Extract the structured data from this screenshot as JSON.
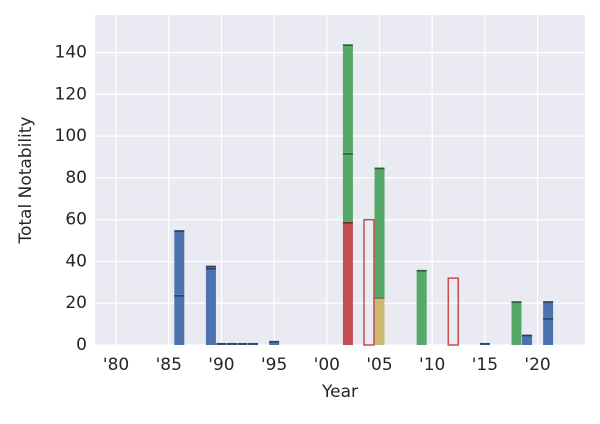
{
  "chart_data": {
    "type": "bar",
    "stacked": true,
    "xlabel": "Year",
    "ylabel": "Total Notability",
    "x": [
      1986,
      1989,
      1990,
      1991,
      1992,
      1993,
      1995,
      2002,
      2004,
      2005,
      2009,
      2012,
      2015,
      2018,
      2019,
      2021
    ],
    "series": [
      {
        "color": "#4c72b0",
        "values": [
          24,
          37,
          1,
          1,
          1,
          1,
          2,
          null,
          null,
          null,
          null,
          null,
          1,
          null,
          5,
          13
        ]
      },
      {
        "color": "#4c72b0",
        "values": [
          31,
          1,
          null,
          null,
          null,
          null,
          null,
          null,
          null,
          null,
          null,
          null,
          null,
          null,
          null,
          8
        ]
      },
      {
        "color": "#c44e52",
        "values": [
          null,
          null,
          null,
          null,
          null,
          null,
          null,
          59,
          null,
          null,
          null,
          null,
          null,
          null,
          null,
          null
        ]
      },
      {
        "color": "#ccb974",
        "values": [
          null,
          null,
          null,
          null,
          null,
          null,
          null,
          null,
          null,
          23,
          null,
          null,
          null,
          null,
          null,
          null
        ]
      },
      {
        "color": "#55a868",
        "values": [
          null,
          null,
          null,
          null,
          null,
          null,
          null,
          33,
          null,
          62,
          36,
          null,
          null,
          21,
          null,
          null
        ]
      },
      {
        "color": "#55a868",
        "values": [
          null,
          null,
          null,
          null,
          null,
          null,
          null,
          52,
          null,
          null,
          null,
          null,
          null,
          null,
          null,
          null
        ]
      },
      {
        "color": "#c44e52",
        "outline": true,
        "values": [
          null,
          null,
          null,
          null,
          null,
          null,
          null,
          null,
          60,
          null,
          null,
          32,
          null,
          null,
          null,
          null
        ]
      }
    ],
    "xlim": [
      1978,
      2024.5
    ],
    "ylim": [
      0,
      158
    ],
    "xticks": [
      {
        "value": 1980,
        "label": "'80"
      },
      {
        "value": 1985,
        "label": "'85"
      },
      {
        "value": 1990,
        "label": "'90"
      },
      {
        "value": 1995,
        "label": "'95"
      },
      {
        "value": 2000,
        "label": "'00"
      },
      {
        "value": 2005,
        "label": "'05"
      },
      {
        "value": 2010,
        "label": "'10"
      },
      {
        "value": 2015,
        "label": "'15"
      },
      {
        "value": 2020,
        "label": "'20"
      }
    ],
    "yticks": [
      0,
      20,
      40,
      60,
      80,
      100,
      120,
      140
    ],
    "grid": true,
    "background": "#eaeaf2"
  }
}
